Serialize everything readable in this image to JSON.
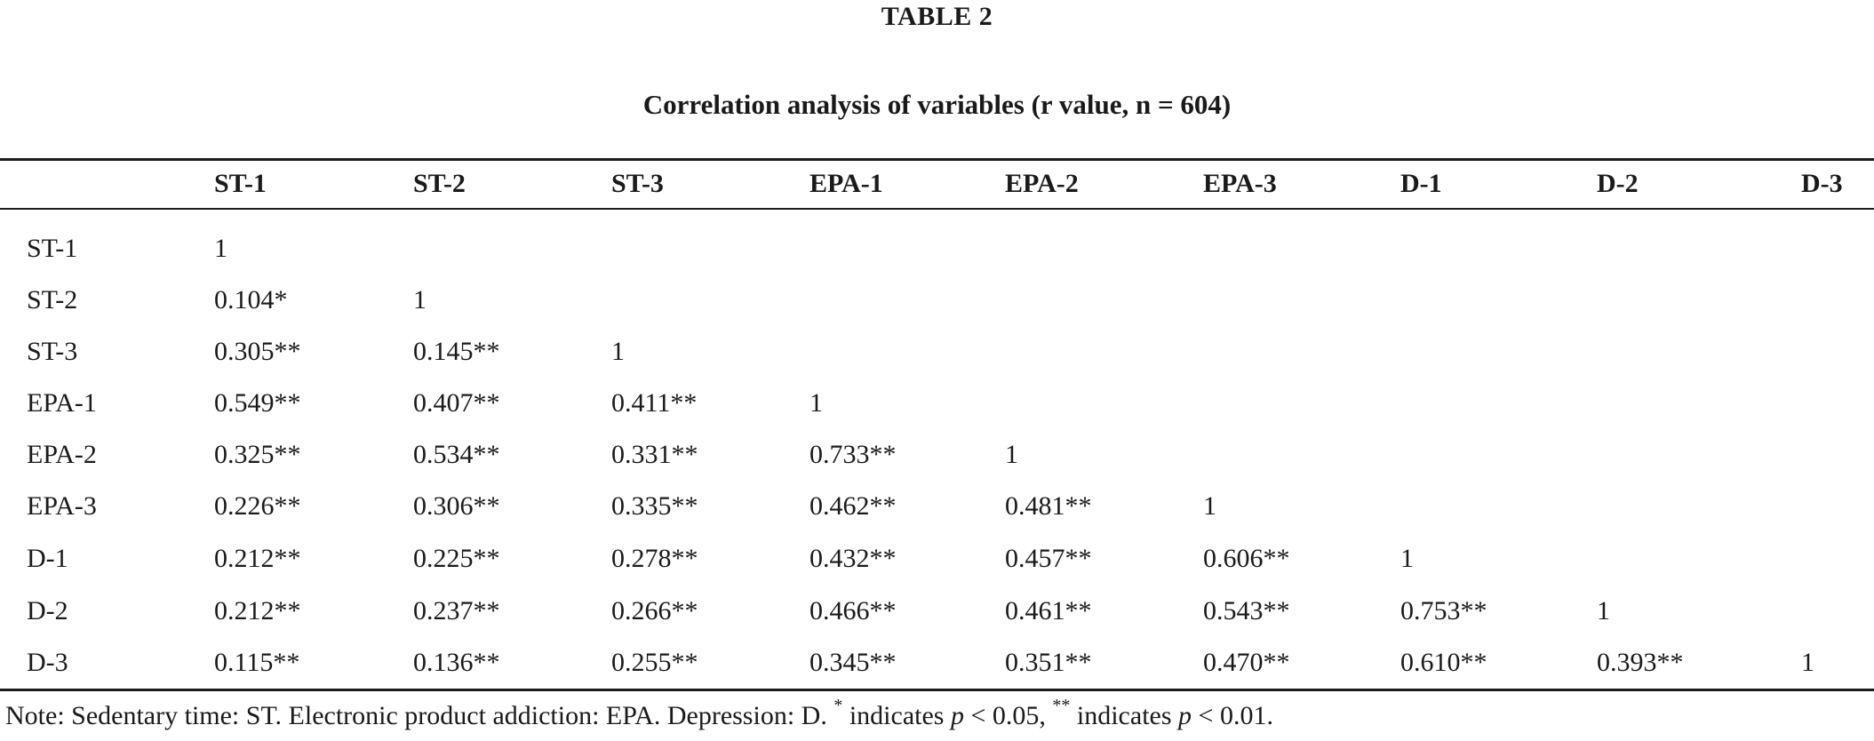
{
  "table": {
    "label": "TABLE 2",
    "caption": "Correlation analysis of variables (r value, n = 604)",
    "columns": [
      "",
      "ST-1",
      "ST-2",
      "ST-3",
      "EPA-1",
      "EPA-2",
      "EPA-3",
      "D-1",
      "D-2",
      "D-3"
    ],
    "rows": [
      [
        "ST-1",
        "1",
        "",
        "",
        "",
        "",
        "",
        "",
        "",
        ""
      ],
      [
        "ST-2",
        "0.104*",
        "1",
        "",
        "",
        "",
        "",
        "",
        "",
        ""
      ],
      [
        "ST-3",
        "0.305**",
        "0.145**",
        "1",
        "",
        "",
        "",
        "",
        "",
        ""
      ],
      [
        "EPA-1",
        "0.549**",
        "0.407**",
        "0.411**",
        "1",
        "",
        "",
        "",
        "",
        ""
      ],
      [
        "EPA-2",
        "0.325**",
        "0.534**",
        "0.331**",
        "0.733**",
        "1",
        "",
        "",
        "",
        ""
      ],
      [
        "EPA-3",
        "0.226**",
        "0.306**",
        "0.335**",
        "0.462**",
        "0.481**",
        "1",
        "",
        "",
        ""
      ],
      [
        "D-1",
        "0.212**",
        "0.225**",
        "0.278**",
        "0.432**",
        "0.457**",
        "0.606**",
        "1",
        "",
        ""
      ],
      [
        "D-2",
        "0.212**",
        "0.237**",
        "0.266**",
        "0.466**",
        "0.461**",
        "0.543**",
        "0.753**",
        "1",
        ""
      ],
      [
        "D-3",
        "0.115**",
        "0.136**",
        "0.255**",
        "0.345**",
        "0.351**",
        "0.470**",
        "0.610**",
        "0.393**",
        "1"
      ]
    ]
  },
  "note": {
    "prefix": "Note: Sedentary time: ST. Electronic product addiction: EPA. Depression: D. ",
    "star1": "*",
    "mid1": " indicates ",
    "p1": "p",
    "cond1": " < 0.05, ",
    "star2": "**",
    "mid2": " indicates ",
    "p2": "p",
    "cond2": " < 0.01."
  }
}
